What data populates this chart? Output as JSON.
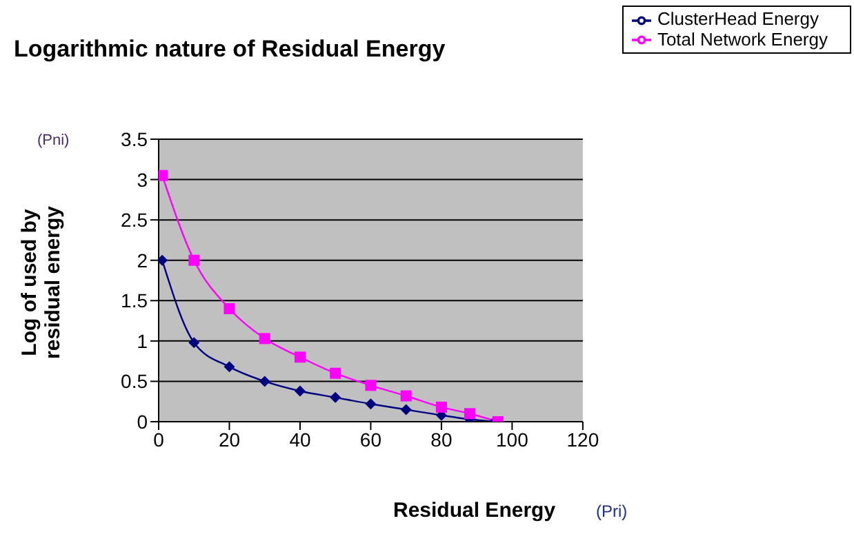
{
  "chart_data": {
    "type": "line",
    "title": "Logarithmic nature of Residual Energy",
    "xlabel": "Residual Energy",
    "ylabel": "Log of used by residual energy",
    "annotations": [
      "(Pni)",
      "(Pri)"
    ],
    "xlim": [
      0,
      120
    ],
    "xticks": [
      0,
      20,
      40,
      60,
      80,
      100,
      120
    ],
    "ylim": [
      0,
      3.5
    ],
    "yticks": [
      0,
      0.5,
      1,
      1.5,
      2,
      2.5,
      3,
      3.5
    ],
    "grid": "y",
    "legend": "top right",
    "line_style": "solid",
    "series": [
      {
        "name": "ClusterHead Energy",
        "color": "#000080",
        "marker": "diamond",
        "x": [
          1,
          10,
          20,
          30,
          40,
          50,
          60,
          70,
          80,
          88,
          95
        ],
        "values": [
          2.0,
          0.98,
          0.68,
          0.5,
          0.38,
          0.3,
          0.22,
          0.15,
          0.08,
          0.03,
          0
        ]
      },
      {
        "name": "Total Network Energy",
        "color": "#ff00ff",
        "marker": "square",
        "x": [
          1,
          10,
          20,
          30,
          40,
          50,
          60,
          70,
          80,
          88,
          96
        ],
        "values": [
          3.05,
          2.0,
          1.4,
          1.03,
          0.8,
          0.6,
          0.45,
          0.32,
          0.18,
          0.1,
          0
        ]
      }
    ]
  }
}
